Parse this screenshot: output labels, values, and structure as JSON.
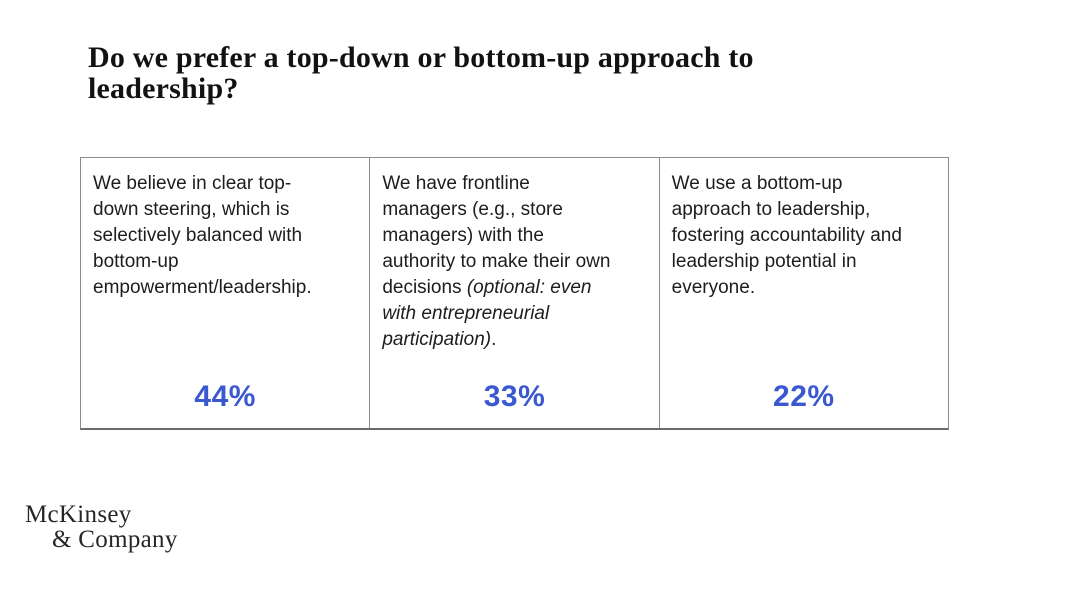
{
  "title": {
    "text": "Do we prefer a top-down or bottom-up approach to\nleadership?"
  },
  "survey_table": {
    "columns": [
      {
        "text": "We believe in clear top-\ndown steering, which is\nselectively balanced with\nbottom-up\nempowerment/leadership.",
        "value": "44%"
      },
      {
        "text": "We have frontline\nmanagers (e.g., store\nmanagers) with the\nauthority to make their own\ndecisions ",
        "text_italic": "(optional: even\nwith entrepreneurial\nparticipation)",
        "text_suffix": ".",
        "value": "33%"
      },
      {
        "text": "We use a bottom-up\napproach to leadership,\nfostering accountability and\nleadership potential in\neveryone.",
        "value": "22%"
      }
    ]
  },
  "colors": {
    "value_accent": "#3A58CF",
    "table_border": "#8C8C8C",
    "table_border_bottom": "#6B6B6B",
    "body_text": "#1D1D1D"
  },
  "logo": {
    "line1": "McKinsey",
    "line2": "& Company"
  }
}
